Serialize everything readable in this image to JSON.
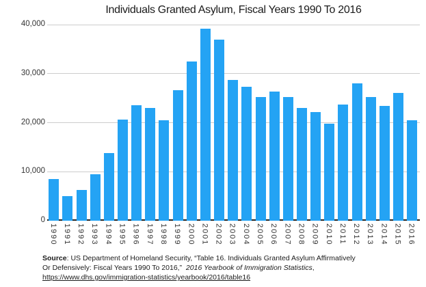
{
  "title": "Individuals Granted Asylum, Fiscal Years 1990 To 2016",
  "chart_data": {
    "type": "bar",
    "title": "Individuals Granted Asylum, Fiscal Years 1990 To 2016",
    "categories": [
      "1990",
      "1991",
      "1992",
      "1993",
      "1994",
      "1995",
      "1996",
      "1997",
      "1998",
      "1999",
      "2000",
      "2001",
      "2002",
      "2003",
      "2004",
      "2005",
      "2006",
      "2007",
      "2008",
      "2009",
      "2010",
      "2011",
      "2012",
      "2013",
      "2014",
      "2015",
      "2016"
    ],
    "values": [
      8472,
      5035,
      6307,
      9539,
      13772,
      20683,
      23532,
      22939,
      20461,
      26578,
      32447,
      39216,
      36894,
      28714,
      27321,
      25257,
      26389,
      25270,
      22930,
      22219,
      19770,
      23669,
      28026,
      25199,
      23374,
      26124,
      20455
    ],
    "xlabel": "",
    "ylabel": "",
    "ylim": [
      0,
      40000
    ],
    "yticks": [
      {
        "value": 0,
        "label": "0"
      },
      {
        "value": 10000,
        "label": "10,000"
      },
      {
        "value": 20000,
        "label": "20,000"
      },
      {
        "value": 30000,
        "label": "30,000"
      },
      {
        "value": 40000,
        "label": "40,000"
      }
    ],
    "grid": "horizontal",
    "legend": "none",
    "colors": {
      "bar": "#24a3f4",
      "gridline": "#cccccc",
      "axis_line": "#222222",
      "tick_text": "#333333",
      "title_text": "#1a1a1a"
    }
  },
  "source": {
    "label": "Source",
    "line1": ": US Department of Homeland Security, “Table 16. Individuals Granted Asylum Affirmatively",
    "line2_normal": "Or Defensively: Fiscal Years 1990 To 2016,”  ",
    "line2_italic": "2016 Yearbook of Immigration Statistics",
    "line2_suffix": ",",
    "link": "https://www.dhs.gov/immigration-statistics/yearbook/2016/table16"
  }
}
